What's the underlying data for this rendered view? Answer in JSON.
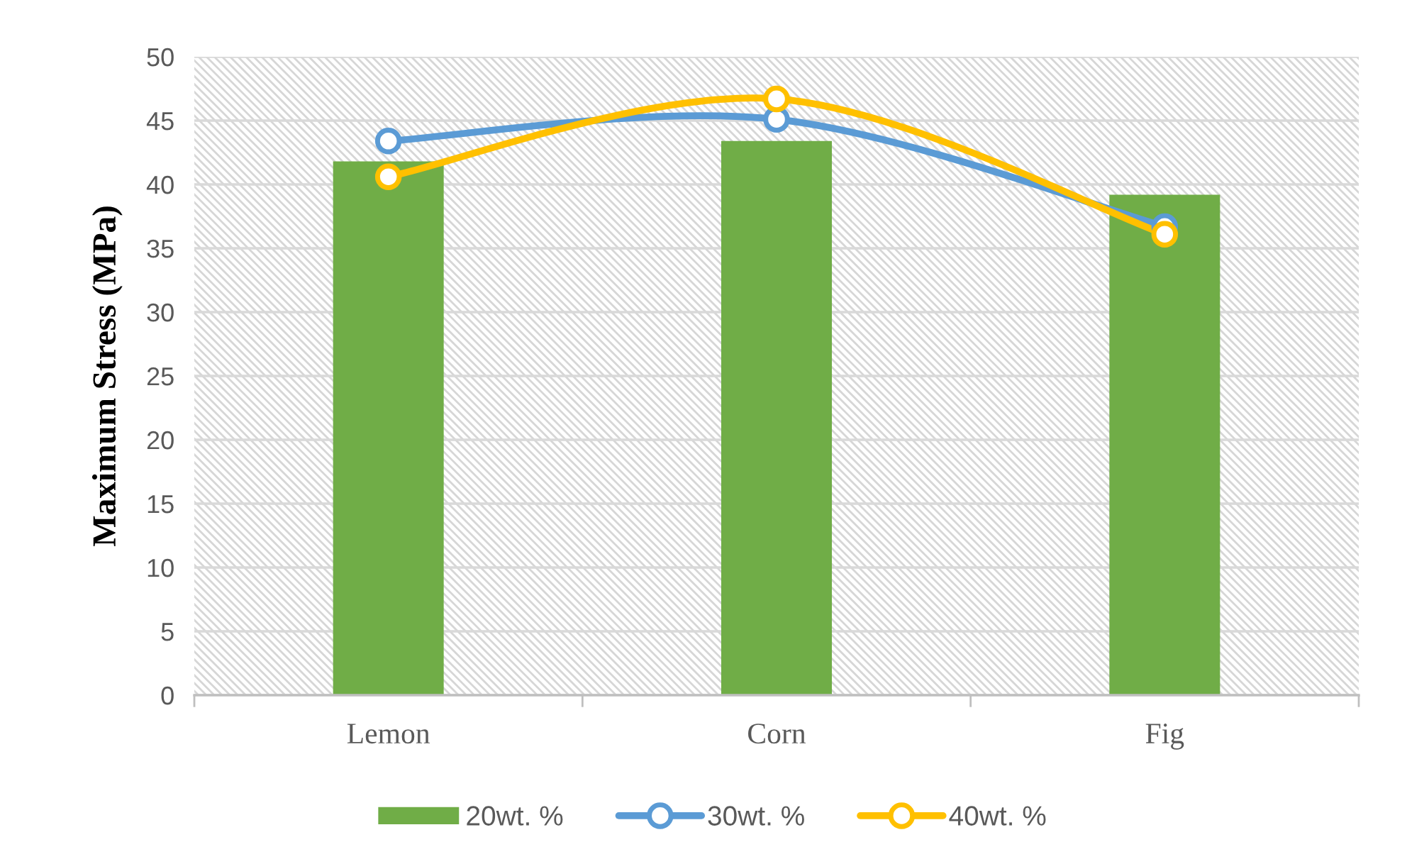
{
  "chart_data": {
    "type": "bar",
    "ylabel": "Maximum Stress (MPa)",
    "categories": [
      "Lemon",
      "Corn",
      "Fig"
    ],
    "series": [
      {
        "name": "20wt. %",
        "color": "#70ad47",
        "values": [
          41.8,
          43.4,
          39.2
        ]
      },
      {
        "name": "30wt. %",
        "type": "line",
        "color": "#5b9bd5",
        "values": [
          43.4,
          45.1,
          36.7
        ]
      },
      {
        "name": "40wt. %",
        "type": "line",
        "color": "#ffc000",
        "values": [
          40.6,
          46.7,
          36.1
        ]
      }
    ],
    "ylim": [
      0,
      50
    ],
    "yticks": [
      0,
      5,
      10,
      15,
      20,
      25,
      30,
      35,
      40,
      45,
      50
    ],
    "grid": "y",
    "legend": "bottom",
    "marker": "circle",
    "line_style": "solid"
  }
}
